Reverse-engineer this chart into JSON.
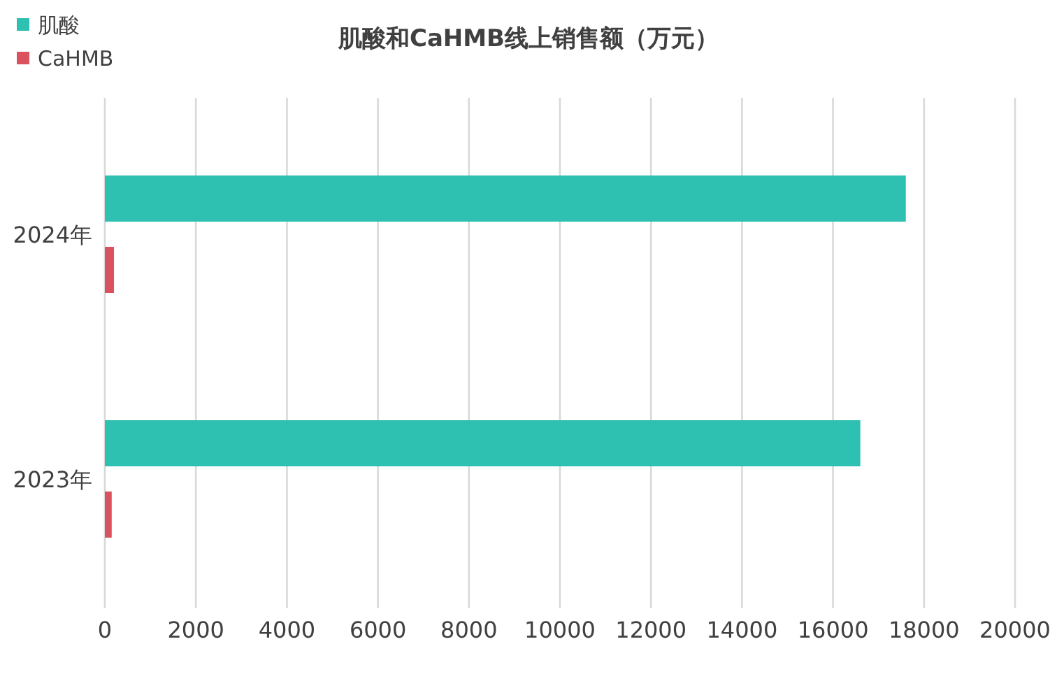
{
  "chart_data": {
    "type": "bar",
    "orientation": "horizontal",
    "title": "肌酸和CaHMB线上销售额（万元）",
    "categories": [
      "2024年",
      "2023年"
    ],
    "series": [
      {
        "name": "肌酸",
        "color": "#2ec0b0",
        "values": [
          17600,
          16600
        ]
      },
      {
        "name": "CaHMB",
        "color": "#d9525e",
        "values": [
          200,
          150
        ]
      }
    ],
    "xlim": [
      0,
      20000
    ],
    "xticks": [
      0,
      2000,
      4000,
      6000,
      8000,
      10000,
      12000,
      14000,
      16000,
      18000,
      20000
    ],
    "grid": "x",
    "legend": "top left"
  }
}
